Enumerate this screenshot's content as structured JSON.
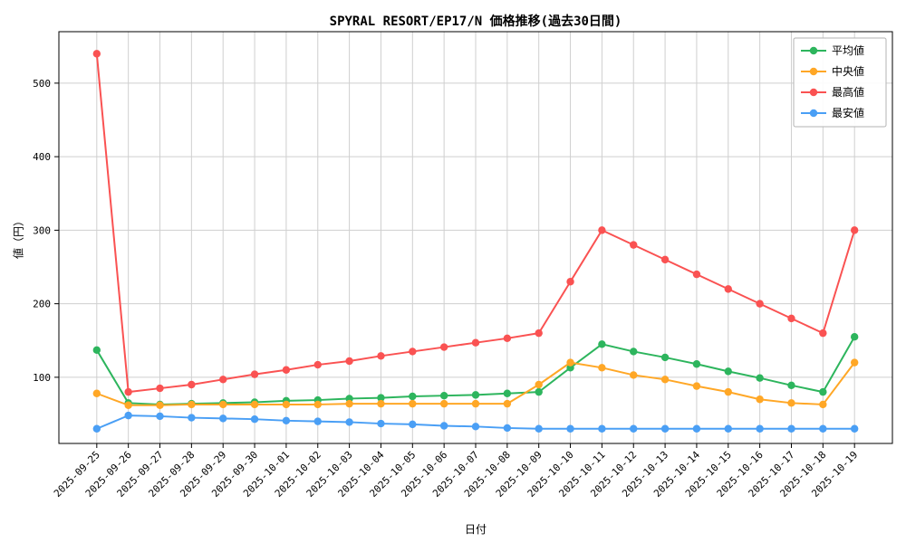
{
  "chart_data": {
    "type": "line",
    "title": "SPYRAL RESORT/EP17/N 価格推移(過去30日間)",
    "xlabel": "日付",
    "ylabel": "値（円）",
    "ylim": [
      10,
      570
    ],
    "yticks": [
      100,
      200,
      300,
      400,
      500
    ],
    "grid": true,
    "legend_position": "upper right",
    "marker": "circle",
    "categories": [
      "2025-09-25",
      "2025-09-26",
      "2025-09-27",
      "2025-09-28",
      "2025-09-29",
      "2025-09-30",
      "2025-10-01",
      "2025-10-02",
      "2025-10-03",
      "2025-10-04",
      "2025-10-05",
      "2025-10-06",
      "2025-10-07",
      "2025-10-08",
      "2025-10-09",
      "2025-10-10",
      "2025-10-11",
      "2025-10-12",
      "2025-10-13",
      "2025-10-14",
      "2025-10-15",
      "2025-10-16",
      "2025-10-17",
      "2025-10-18",
      "2025-10-19"
    ],
    "series": [
      {
        "key": "average",
        "name": "平均値",
        "color": "#2db55d",
        "values": [
          137,
          65,
          63,
          64,
          65,
          66,
          68,
          69,
          71,
          72,
          74,
          75,
          76,
          78,
          80,
          113,
          145,
          135,
          127,
          118,
          108,
          99,
          89,
          80,
          155
        ]
      },
      {
        "key": "median",
        "name": "中央値",
        "color": "#ffa726",
        "values": [
          78,
          62,
          62,
          63,
          63,
          63,
          63,
          63,
          64,
          64,
          64,
          64,
          64,
          64,
          90,
          120,
          113,
          103,
          97,
          88,
          80,
          70,
          65,
          63,
          120
        ]
      },
      {
        "key": "max",
        "name": "最高値",
        "color": "#fa5252",
        "values": [
          540,
          80,
          85,
          90,
          97,
          104,
          110,
          117,
          122,
          129,
          135,
          141,
          147,
          153,
          160,
          230,
          300,
          280,
          260,
          240,
          220,
          200,
          180,
          160,
          300
        ]
      },
      {
        "key": "min",
        "name": "最安値",
        "color": "#4a9ff5",
        "values": [
          30,
          48,
          47,
          45,
          44,
          43,
          41,
          40,
          39,
          37,
          36,
          34,
          33,
          31,
          30,
          30,
          30,
          30,
          30,
          30,
          30,
          30,
          30,
          30,
          30
        ]
      }
    ]
  }
}
